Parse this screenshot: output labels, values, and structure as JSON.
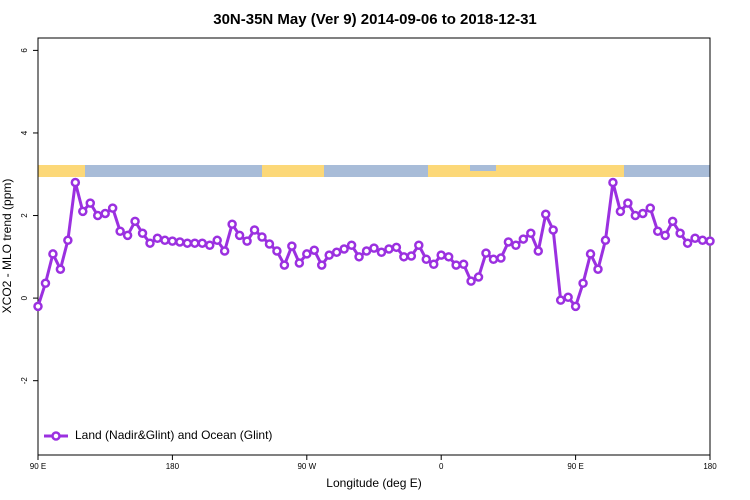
{
  "chart_data": {
    "type": "line",
    "title": "30N-35N May (Ver 9)   2014-09-06 to 2018-12-31",
    "xlabel": "Longitude (deg E)",
    "ylabel": "XCO2 - MLO trend (ppm)",
    "x": [
      90,
      95,
      100,
      105,
      110,
      115,
      120,
      125,
      130,
      135,
      140,
      145,
      150,
      155,
      160,
      165,
      170,
      175,
      180,
      185,
      190,
      195,
      200,
      205,
      210,
      215,
      220,
      225,
      230,
      235,
      240,
      245,
      250,
      255,
      260,
      265,
      270,
      275,
      280,
      285,
      290,
      295,
      300,
      305,
      310,
      315,
      320,
      325,
      330,
      335,
      340,
      345,
      350,
      355,
      360,
      365,
      370,
      375,
      380,
      385,
      390,
      395,
      400,
      405,
      410,
      415,
      420,
      425,
      430,
      435,
      440,
      445,
      450,
      455,
      460,
      465,
      470,
      475,
      480,
      485,
      490,
      495,
      500,
      505,
      510,
      515,
      520,
      525,
      530,
      535,
      540
    ],
    "series": [
      {
        "name": "Land (Nadir&Glint) and Ocean (Glint)",
        "color": "#9b30e0",
        "values": [
          -0.2,
          0.36,
          1.07,
          0.7,
          1.4,
          2.8,
          2.1,
          2.3,
          2.0,
          2.05,
          2.18,
          1.62,
          1.52,
          1.86,
          1.57,
          1.33,
          1.45,
          1.4,
          1.38,
          1.36,
          1.33,
          1.33,
          1.33,
          1.28,
          1.4,
          1.14,
          1.79,
          1.52,
          1.38,
          1.65,
          1.48,
          1.31,
          1.14,
          0.8,
          1.26,
          0.85,
          1.07,
          1.16,
          0.8,
          1.04,
          1.11,
          1.19,
          1.28,
          1.0,
          1.14,
          1.21,
          1.11,
          1.19,
          1.23,
          1.0,
          1.02,
          1.28,
          0.94,
          0.82,
          1.04,
          1.0,
          0.8,
          0.82,
          0.41,
          0.51,
          1.09,
          0.94,
          0.97,
          1.36,
          1.28,
          1.43,
          1.57,
          1.14,
          2.03,
          1.65,
          -0.05,
          0.02,
          -0.2,
          0.36,
          1.07,
          0.7,
          1.4,
          2.8,
          2.1,
          2.3,
          2.0,
          2.05,
          2.18,
          1.62,
          1.52,
          1.86,
          1.57,
          1.33,
          1.45,
          1.4,
          1.38
        ]
      }
    ],
    "xlim": [
      90,
      540
    ],
    "xticks": [
      {
        "value": 90,
        "label": "90 E"
      },
      180,
      {
        "value": 270,
        "label": "90 W"
      },
      {
        "value": 360,
        "label": "0"
      },
      {
        "value": 450,
        "label": "90 E"
      },
      {
        "value": 540,
        "label": "180"
      }
    ],
    "ylim": [
      -3.8,
      6.3
    ],
    "yticks": [
      -2,
      0,
      2,
      4,
      6
    ],
    "legend": "bottom-left"
  }
}
